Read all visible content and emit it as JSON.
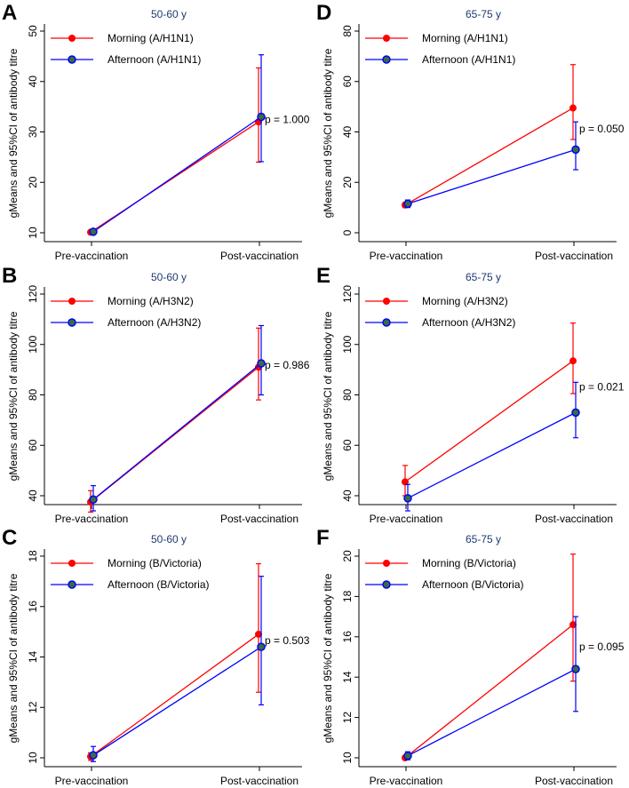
{
  "chart_data": [
    {
      "type": "line",
      "letter": "A",
      "title": "50-60 y",
      "ylabel": "gMeans and 95%CI of antibody titre",
      "categories": [
        "Pre-vaccination",
        "Post-vaccination"
      ],
      "ylim": [
        10,
        50
      ],
      "yticks": [
        10,
        20,
        30,
        40,
        50
      ],
      "p_label": "p = 1.000",
      "series": [
        {
          "name": "Morning (A/H1N1)",
          "values": [
            10.1,
            32
          ],
          "ci_low": [
            9.9,
            24
          ],
          "ci_high": [
            10.3,
            42.7
          ]
        },
        {
          "name": "Afternoon (A/H1N1)",
          "values": [
            10.2,
            33
          ],
          "ci_low": [
            10,
            24.1
          ],
          "ci_high": [
            10.4,
            45.3
          ]
        }
      ]
    },
    {
      "type": "line",
      "letter": "B",
      "title": "50-60 y",
      "ylabel": "gMeans and 95%CI of antibody titre",
      "categories": [
        "Pre-vaccination",
        "Post-vaccination"
      ],
      "ylim": [
        40,
        120
      ],
      "yticks": [
        40,
        60,
        80,
        100,
        120
      ],
      "p_label": "p = 0.986",
      "series": [
        {
          "name": "Morning (A/H3N2)",
          "values": [
            37.5,
            91
          ],
          "ci_low": [
            33.5,
            78
          ],
          "ci_high": [
            42,
            106.5
          ]
        },
        {
          "name": "Afternoon (A/H3N2)",
          "values": [
            38.5,
            92.5
          ],
          "ci_low": [
            34,
            80
          ],
          "ci_high": [
            44,
            107.5
          ]
        }
      ]
    },
    {
      "type": "line",
      "letter": "C",
      "title": "50-60 y",
      "ylabel": "gMeans and 95%CI of antibody titre",
      "categories": [
        "Pre-vaccination",
        "Post-vaccination"
      ],
      "ylim": [
        10,
        18
      ],
      "yticks": [
        10,
        12,
        14,
        16,
        18
      ],
      "p_label": "p = 0.503",
      "series": [
        {
          "name": "Morning (B/Victoria)",
          "values": [
            10.05,
            14.9
          ],
          "ci_low": [
            9.9,
            12.6
          ],
          "ci_high": [
            10.2,
            17.7
          ]
        },
        {
          "name": "Afternoon (B/Victoria)",
          "values": [
            10.1,
            14.4
          ],
          "ci_low": [
            9.85,
            12.1
          ],
          "ci_high": [
            10.45,
            17.2
          ]
        }
      ]
    },
    {
      "type": "line",
      "letter": "D",
      "title": "65-75 y",
      "ylabel": "gMeans and 95%CI of antibody titre",
      "categories": [
        "Pre-vaccination",
        "Post-vaccination"
      ],
      "ylim": [
        0,
        80
      ],
      "yticks": [
        0,
        20,
        40,
        60,
        80
      ],
      "p_label": "p = 0.050",
      "series": [
        {
          "name": "Morning (A/H1N1)",
          "values": [
            11,
            49.5
          ],
          "ci_low": [
            10,
            37
          ],
          "ci_high": [
            12,
            66.7
          ]
        },
        {
          "name": "Afternoon (A/H1N1)",
          "values": [
            11.5,
            33
          ],
          "ci_low": [
            10,
            25
          ],
          "ci_high": [
            13,
            44
          ]
        }
      ]
    },
    {
      "type": "line",
      "letter": "E",
      "title": "65-75 y",
      "ylabel": "gMeans and 95%CI of antibody titre",
      "categories": [
        "Pre-vaccination",
        "Post-vaccination"
      ],
      "ylim": [
        40,
        120
      ],
      "yticks": [
        40,
        60,
        80,
        100,
        120
      ],
      "p_label": "p = 0.021",
      "series": [
        {
          "name": "Morning (A/H3N2)",
          "values": [
            45.5,
            93.5
          ],
          "ci_low": [
            40,
            80.5
          ],
          "ci_high": [
            52,
            108.5
          ]
        },
        {
          "name": "Afternoon (A/H3N2)",
          "values": [
            39,
            73
          ],
          "ci_low": [
            34,
            63
          ],
          "ci_high": [
            44.5,
            85
          ]
        }
      ]
    },
    {
      "type": "line",
      "letter": "F",
      "title": "65-75 y",
      "ylabel": "gMeans and 95%CI of antibody titre",
      "categories": [
        "Pre-vaccination",
        "Post-vaccination"
      ],
      "ylim": [
        10,
        20
      ],
      "yticks": [
        10,
        12,
        14,
        16,
        18,
        20
      ],
      "p_label": "p = 0.095",
      "series": [
        {
          "name": "Morning (B/Victoria)",
          "values": [
            10,
            16.6
          ],
          "ci_low": [
            9.95,
            13.8
          ],
          "ci_high": [
            10.05,
            20.1
          ]
        },
        {
          "name": "Afternoon (B/Victoria)",
          "values": [
            10.1,
            14.4
          ],
          "ci_low": [
            9.9,
            12.3
          ],
          "ci_high": [
            10.3,
            17
          ]
        }
      ]
    }
  ],
  "colors": {
    "morning": "#ff0000",
    "afternoon": "#0000ff",
    "afternoon_marker_fill": "#3a6e3a",
    "title": "#1f3a6e",
    "axis": "#000000"
  }
}
